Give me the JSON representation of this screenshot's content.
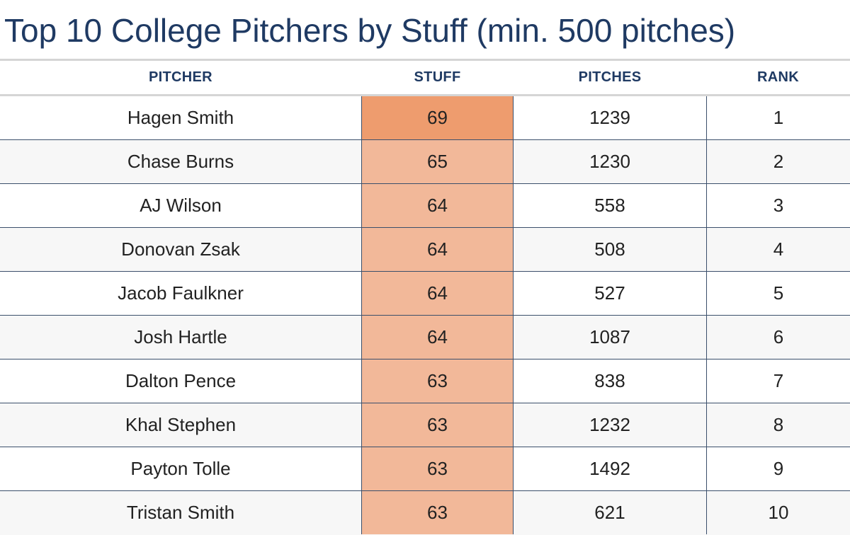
{
  "title": "Top 10 College Pitchers by Stuff (min. 500 pitches)",
  "colors": {
    "title": "#1f3a63",
    "header": "#1f3a63",
    "stuff_top": "#ee9c6e",
    "stuff_rest": "#f2b899",
    "row_alt": "#f7f7f7",
    "divider": "#3b4f6b"
  },
  "chart_data": {
    "type": "table",
    "columns": [
      "PITCHER",
      "STUFF",
      "PITCHES",
      "RANK"
    ],
    "rows": [
      {
        "pitcher": "Hagen Smith",
        "stuff": "69",
        "pitches": "1239",
        "rank": "1"
      },
      {
        "pitcher": "Chase Burns",
        "stuff": "65",
        "pitches": "1230",
        "rank": "2"
      },
      {
        "pitcher": "AJ Wilson",
        "stuff": "64",
        "pitches": "558",
        "rank": "3"
      },
      {
        "pitcher": "Donovan Zsak",
        "stuff": "64",
        "pitches": "508",
        "rank": "4"
      },
      {
        "pitcher": "Jacob Faulkner",
        "stuff": "64",
        "pitches": "527",
        "rank": "5"
      },
      {
        "pitcher": "Josh Hartle",
        "stuff": "64",
        "pitches": "1087",
        "rank": "6"
      },
      {
        "pitcher": "Dalton Pence",
        "stuff": "63",
        "pitches": "838",
        "rank": "7"
      },
      {
        "pitcher": "Khal Stephen",
        "stuff": "63",
        "pitches": "1232",
        "rank": "8"
      },
      {
        "pitcher": "Payton Tolle",
        "stuff": "63",
        "pitches": "1492",
        "rank": "9"
      },
      {
        "pitcher": "Tristan Smith",
        "stuff": "63",
        "pitches": "621",
        "rank": "10"
      }
    ]
  }
}
